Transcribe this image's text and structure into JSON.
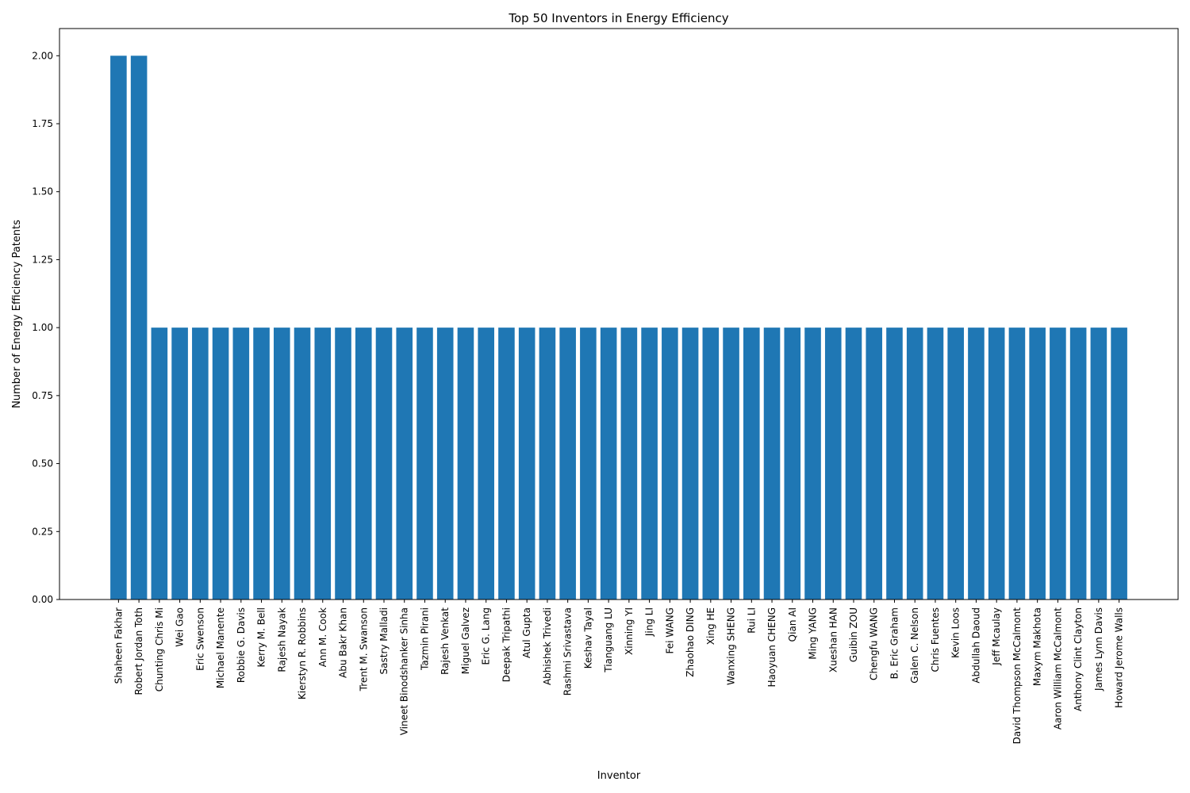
{
  "chart_data": {
    "type": "bar",
    "title": "Top 50 Inventors in Energy Efficiency",
    "xlabel": "Inventor",
    "ylabel": "Number of Energy Efficiency Patents",
    "ylim": [
      0,
      2.1
    ],
    "yticks": [
      "0.00",
      "0.25",
      "0.50",
      "0.75",
      "1.00",
      "1.25",
      "1.50",
      "1.75",
      "2.00"
    ],
    "grid": false,
    "bar_color": "#1f77b4",
    "categories": [
      "Shaheen Fakhar",
      "Robert Jordan Toth",
      "Chunting Chris Mi",
      "Wei Gao",
      "Eric Swenson",
      "Michael Manente",
      "Robbie G. Davis",
      "Kerry M. Bell",
      "Rajesh Nayak",
      "Kierstyn R. Robbins",
      "Ann M. Cook",
      "Abu Bakr Khan",
      "Trent M. Swanson",
      "Sastry Malladi",
      "Vineet Binodshanker Sinha",
      "Tazmin Pirani",
      "Rajesh Venkat",
      "Miguel Galvez",
      "Eric G. Lang",
      "Deepak Tripathi",
      "Atul Gupta",
      "Abhishek Trivedi",
      "Rashmi Srivastava",
      "Keshav Tayal",
      "Tianguang LU",
      "Xinning YI",
      "Jing LI",
      "Fei WANG",
      "Zhaohao DING",
      "Xing HE",
      "Wanxing SHENG",
      "Rui LI",
      "Haoyuan CHENG",
      "Qian AI",
      "Ming YANG",
      "Xueshan HAN",
      "Guibin ZOU",
      "Chengfu WANG",
      "B. Eric Graham",
      "Galen C. Nelson",
      "Chris Fuentes",
      "Kevin Loos",
      "Abdullah Daoud",
      "Jeff Mcaulay",
      "David Thompson McCalmont",
      "Maxym Makhota",
      "Aaron William McCalmont",
      "Anthony Clint Clayton",
      "James Lynn Davis",
      "Howard Jerome Walls"
    ],
    "values": [
      2,
      2,
      1,
      1,
      1,
      1,
      1,
      1,
      1,
      1,
      1,
      1,
      1,
      1,
      1,
      1,
      1,
      1,
      1,
      1,
      1,
      1,
      1,
      1,
      1,
      1,
      1,
      1,
      1,
      1,
      1,
      1,
      1,
      1,
      1,
      1,
      1,
      1,
      1,
      1,
      1,
      1,
      1,
      1,
      1,
      1,
      1,
      1,
      1,
      1
    ]
  }
}
